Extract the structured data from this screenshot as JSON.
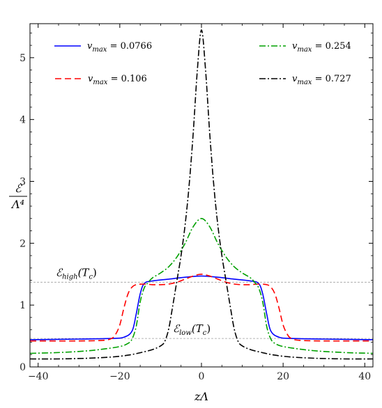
{
  "chart_data": {
    "type": "line",
    "title": "",
    "xlabel": "zΛ",
    "ylabel_num": "ℰ",
    "ylabel_den": "Λ⁴",
    "xlim": [
      -42,
      42
    ],
    "ylim": [
      0,
      5.55
    ],
    "xticks": [
      -40,
      -20,
      0,
      20,
      40
    ],
    "yticks": [
      0,
      1,
      2,
      3,
      4,
      5
    ],
    "grid": false,
    "legend_position": "top",
    "reference_lines": [
      {
        "label": "ℰ_high(T_c)",
        "main": "ℰ",
        "sub": "high",
        "arg": "(T",
        "argsub": "c",
        "close": ")",
        "y": 1.37,
        "color": "#9e9e9e"
      },
      {
        "label": "ℰ_low(T_c)",
        "main": "ℰ",
        "sub": "low",
        "arg": "(T",
        "argsub": "c",
        "close": ")",
        "y": 0.46,
        "color": "#9e9e9e"
      }
    ],
    "series": [
      {
        "name": "v_max = 0.0766",
        "prefix": "v",
        "sub": "max",
        "value": " = 0.0766",
        "color": "#0000ff",
        "dash": "",
        "x": [
          -42,
          -30,
          -22,
          -19,
          -17,
          -16,
          -15,
          -14,
          -12,
          -8,
          -4,
          0,
          4,
          8,
          12,
          14,
          15,
          16,
          17,
          19,
          22,
          30,
          42
        ],
        "y": [
          0.44,
          0.45,
          0.46,
          0.48,
          0.58,
          0.85,
          1.18,
          1.35,
          1.39,
          1.42,
          1.45,
          1.47,
          1.45,
          1.42,
          1.39,
          1.35,
          1.18,
          0.85,
          0.58,
          0.48,
          0.46,
          0.45,
          0.44
        ]
      },
      {
        "name": "v_max = 0.106",
        "prefix": "v",
        "sub": "max",
        "value": " = 0.106",
        "color": "#ff0000",
        "dash": "9,5",
        "x": [
          -42,
          -30,
          -24,
          -22,
          -21,
          -20,
          -19,
          -18,
          -17,
          -16,
          -14,
          -12,
          -10,
          -8,
          -6,
          -4,
          -2,
          0,
          2,
          4,
          6,
          8,
          10,
          12,
          14,
          16,
          17,
          18,
          19,
          20,
          21,
          22,
          24,
          30,
          42
        ],
        "y": [
          0.42,
          0.42,
          0.43,
          0.46,
          0.53,
          0.68,
          0.95,
          1.18,
          1.29,
          1.33,
          1.34,
          1.33,
          1.33,
          1.34,
          1.37,
          1.42,
          1.47,
          1.5,
          1.47,
          1.42,
          1.37,
          1.34,
          1.33,
          1.33,
          1.34,
          1.33,
          1.29,
          1.18,
          0.95,
          0.68,
          0.53,
          0.46,
          0.43,
          0.42,
          0.42
        ]
      },
      {
        "name": "v_max = 0.254",
        "prefix": "v",
        "sub": "max",
        "value": " = 0.254",
        "color": "#00a000",
        "dash": "9,3,2,3",
        "x": [
          -42,
          -36,
          -30,
          -25,
          -20,
          -18,
          -17,
          -16,
          -15,
          -14,
          -13,
          -12,
          -10,
          -8,
          -6,
          -4,
          -2,
          0,
          2,
          4,
          6,
          8,
          10,
          12,
          13,
          14,
          15,
          16,
          17,
          18,
          20,
          25,
          30,
          36,
          42
        ],
        "y": [
          0.22,
          0.23,
          0.25,
          0.28,
          0.33,
          0.38,
          0.45,
          0.65,
          1.05,
          1.28,
          1.37,
          1.44,
          1.52,
          1.62,
          1.78,
          2.0,
          2.27,
          2.4,
          2.27,
          2.0,
          1.78,
          1.62,
          1.52,
          1.44,
          1.37,
          1.28,
          1.05,
          0.65,
          0.45,
          0.38,
          0.33,
          0.28,
          0.25,
          0.23,
          0.22
        ]
      },
      {
        "name": "v_max = 0.727",
        "prefix": "v",
        "sub": "max",
        "value": " = 0.727",
        "color": "#000000",
        "dash": "9,3,2,3",
        "x": [
          -42,
          -35,
          -28,
          -22,
          -18,
          -15,
          -12,
          -10,
          -9,
          -8,
          -7,
          -6,
          -5,
          -4,
          -3,
          -2,
          -1,
          0,
          1,
          2,
          3,
          4,
          5,
          6,
          7,
          8,
          9,
          10,
          12,
          15,
          18,
          22,
          28,
          35,
          42
        ],
        "y": [
          0.13,
          0.13,
          0.14,
          0.16,
          0.19,
          0.23,
          0.28,
          0.34,
          0.41,
          0.62,
          1.0,
          1.4,
          1.8,
          2.3,
          2.95,
          3.8,
          4.8,
          5.45,
          4.8,
          3.8,
          2.95,
          2.3,
          1.8,
          1.4,
          1.0,
          0.62,
          0.41,
          0.34,
          0.28,
          0.23,
          0.19,
          0.16,
          0.14,
          0.13,
          0.13
        ]
      }
    ]
  }
}
